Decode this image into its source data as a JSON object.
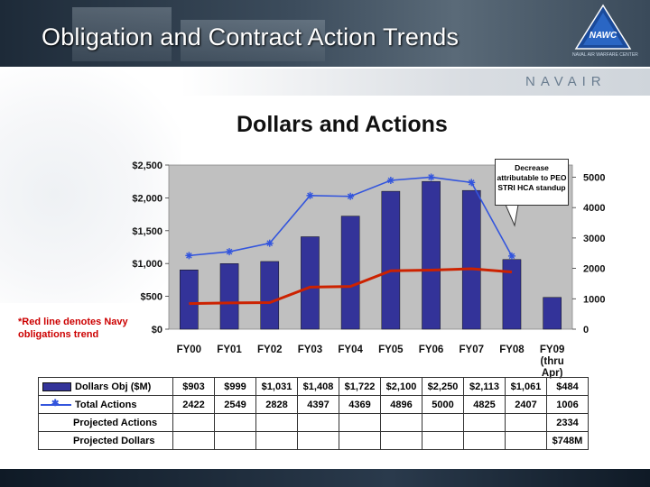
{
  "slide": {
    "title": "Obligation and Contract Action Trends",
    "logo_text": "NAWC",
    "logo_subtext": "NAVAL AIR WARFARE CENTER",
    "brand": "NAVAIR",
    "annotation": "*Red line denotes Navy obligations trend",
    "callout": "Decrease attributable to PEO STRI HCA standup"
  },
  "chart_data": {
    "type": "bar",
    "title": "Dollars and Actions",
    "categories": [
      "FY00",
      "FY01",
      "FY02",
      "FY03",
      "FY04",
      "FY05",
      "FY06",
      "FY07",
      "FY08",
      "FY09 (thru Apr)"
    ],
    "category_lines": [
      [
        "FY00"
      ],
      [
        "FY01"
      ],
      [
        "FY02"
      ],
      [
        "FY03"
      ],
      [
        "FY04"
      ],
      [
        "FY05"
      ],
      [
        "FY06"
      ],
      [
        "FY07"
      ],
      [
        "FY08"
      ],
      [
        "FY09",
        "(thru",
        "Apr)"
      ]
    ],
    "left_axis": {
      "ylim": [
        0,
        2500
      ],
      "ticks": [
        "$0",
        "$500",
        "$1,000",
        "$1,500",
        "$2,000",
        "$2,500"
      ],
      "tick_values": [
        0,
        500,
        1000,
        1500,
        2000,
        2500
      ]
    },
    "right_axis": {
      "ylim": [
        0,
        5400
      ],
      "ticks": [
        "0",
        "1000",
        "2000",
        "3000",
        "4000",
        "5000"
      ],
      "tick_values": [
        0,
        1000,
        2000,
        3000,
        4000,
        5000
      ]
    },
    "series": [
      {
        "name": "Dollars Obj ($M)",
        "type": "bar",
        "axis": "left",
        "color": "#333399",
        "values": [
          903,
          999,
          1031,
          1408,
          1722,
          2100,
          2250,
          2113,
          1061,
          484
        ]
      },
      {
        "name": "Total Actions",
        "type": "line",
        "axis": "right",
        "color": "#3355dd",
        "marker": "asterisk",
        "values": [
          2422,
          2549,
          2828,
          4397,
          4369,
          4896,
          5000,
          4825,
          2407,
          1006
        ]
      },
      {
        "type": "line",
        "axis": "left",
        "color": "#cc2200",
        "values": [
          390,
          400,
          405,
          640,
          650,
          890,
          900,
          920,
          870,
          null
        ]
      }
    ],
    "table": {
      "rows": [
        {
          "label": "Dollars Obj ($M)",
          "key": "bar",
          "cells": [
            "$903",
            "$999",
            "$1,031",
            "$1,408",
            "$1,722",
            "$2,100",
            "$2,250",
            "$2,113",
            "$1,061",
            "$484"
          ]
        },
        {
          "label": "Total Actions",
          "key": "line",
          "cells": [
            "2422",
            "2549",
            "2828",
            "4397",
            "4369",
            "4896",
            "5000",
            "4825",
            "2407",
            "1006"
          ]
        },
        {
          "label": "Projected Actions",
          "key": "none",
          "cells": [
            "",
            "",
            "",
            "",
            "",
            "",
            "",
            "",
            "",
            "2334"
          ]
        },
        {
          "label": "Projected Dollars",
          "key": "none",
          "cells": [
            "",
            "",
            "",
            "",
            "",
            "",
            "",
            "",
            "",
            "$748M"
          ]
        }
      ]
    },
    "colors": {
      "plot_bg": "#c0c0c0",
      "bar": "#333399",
      "actions_line": "#3355dd",
      "trend_line": "#cc2200"
    }
  }
}
